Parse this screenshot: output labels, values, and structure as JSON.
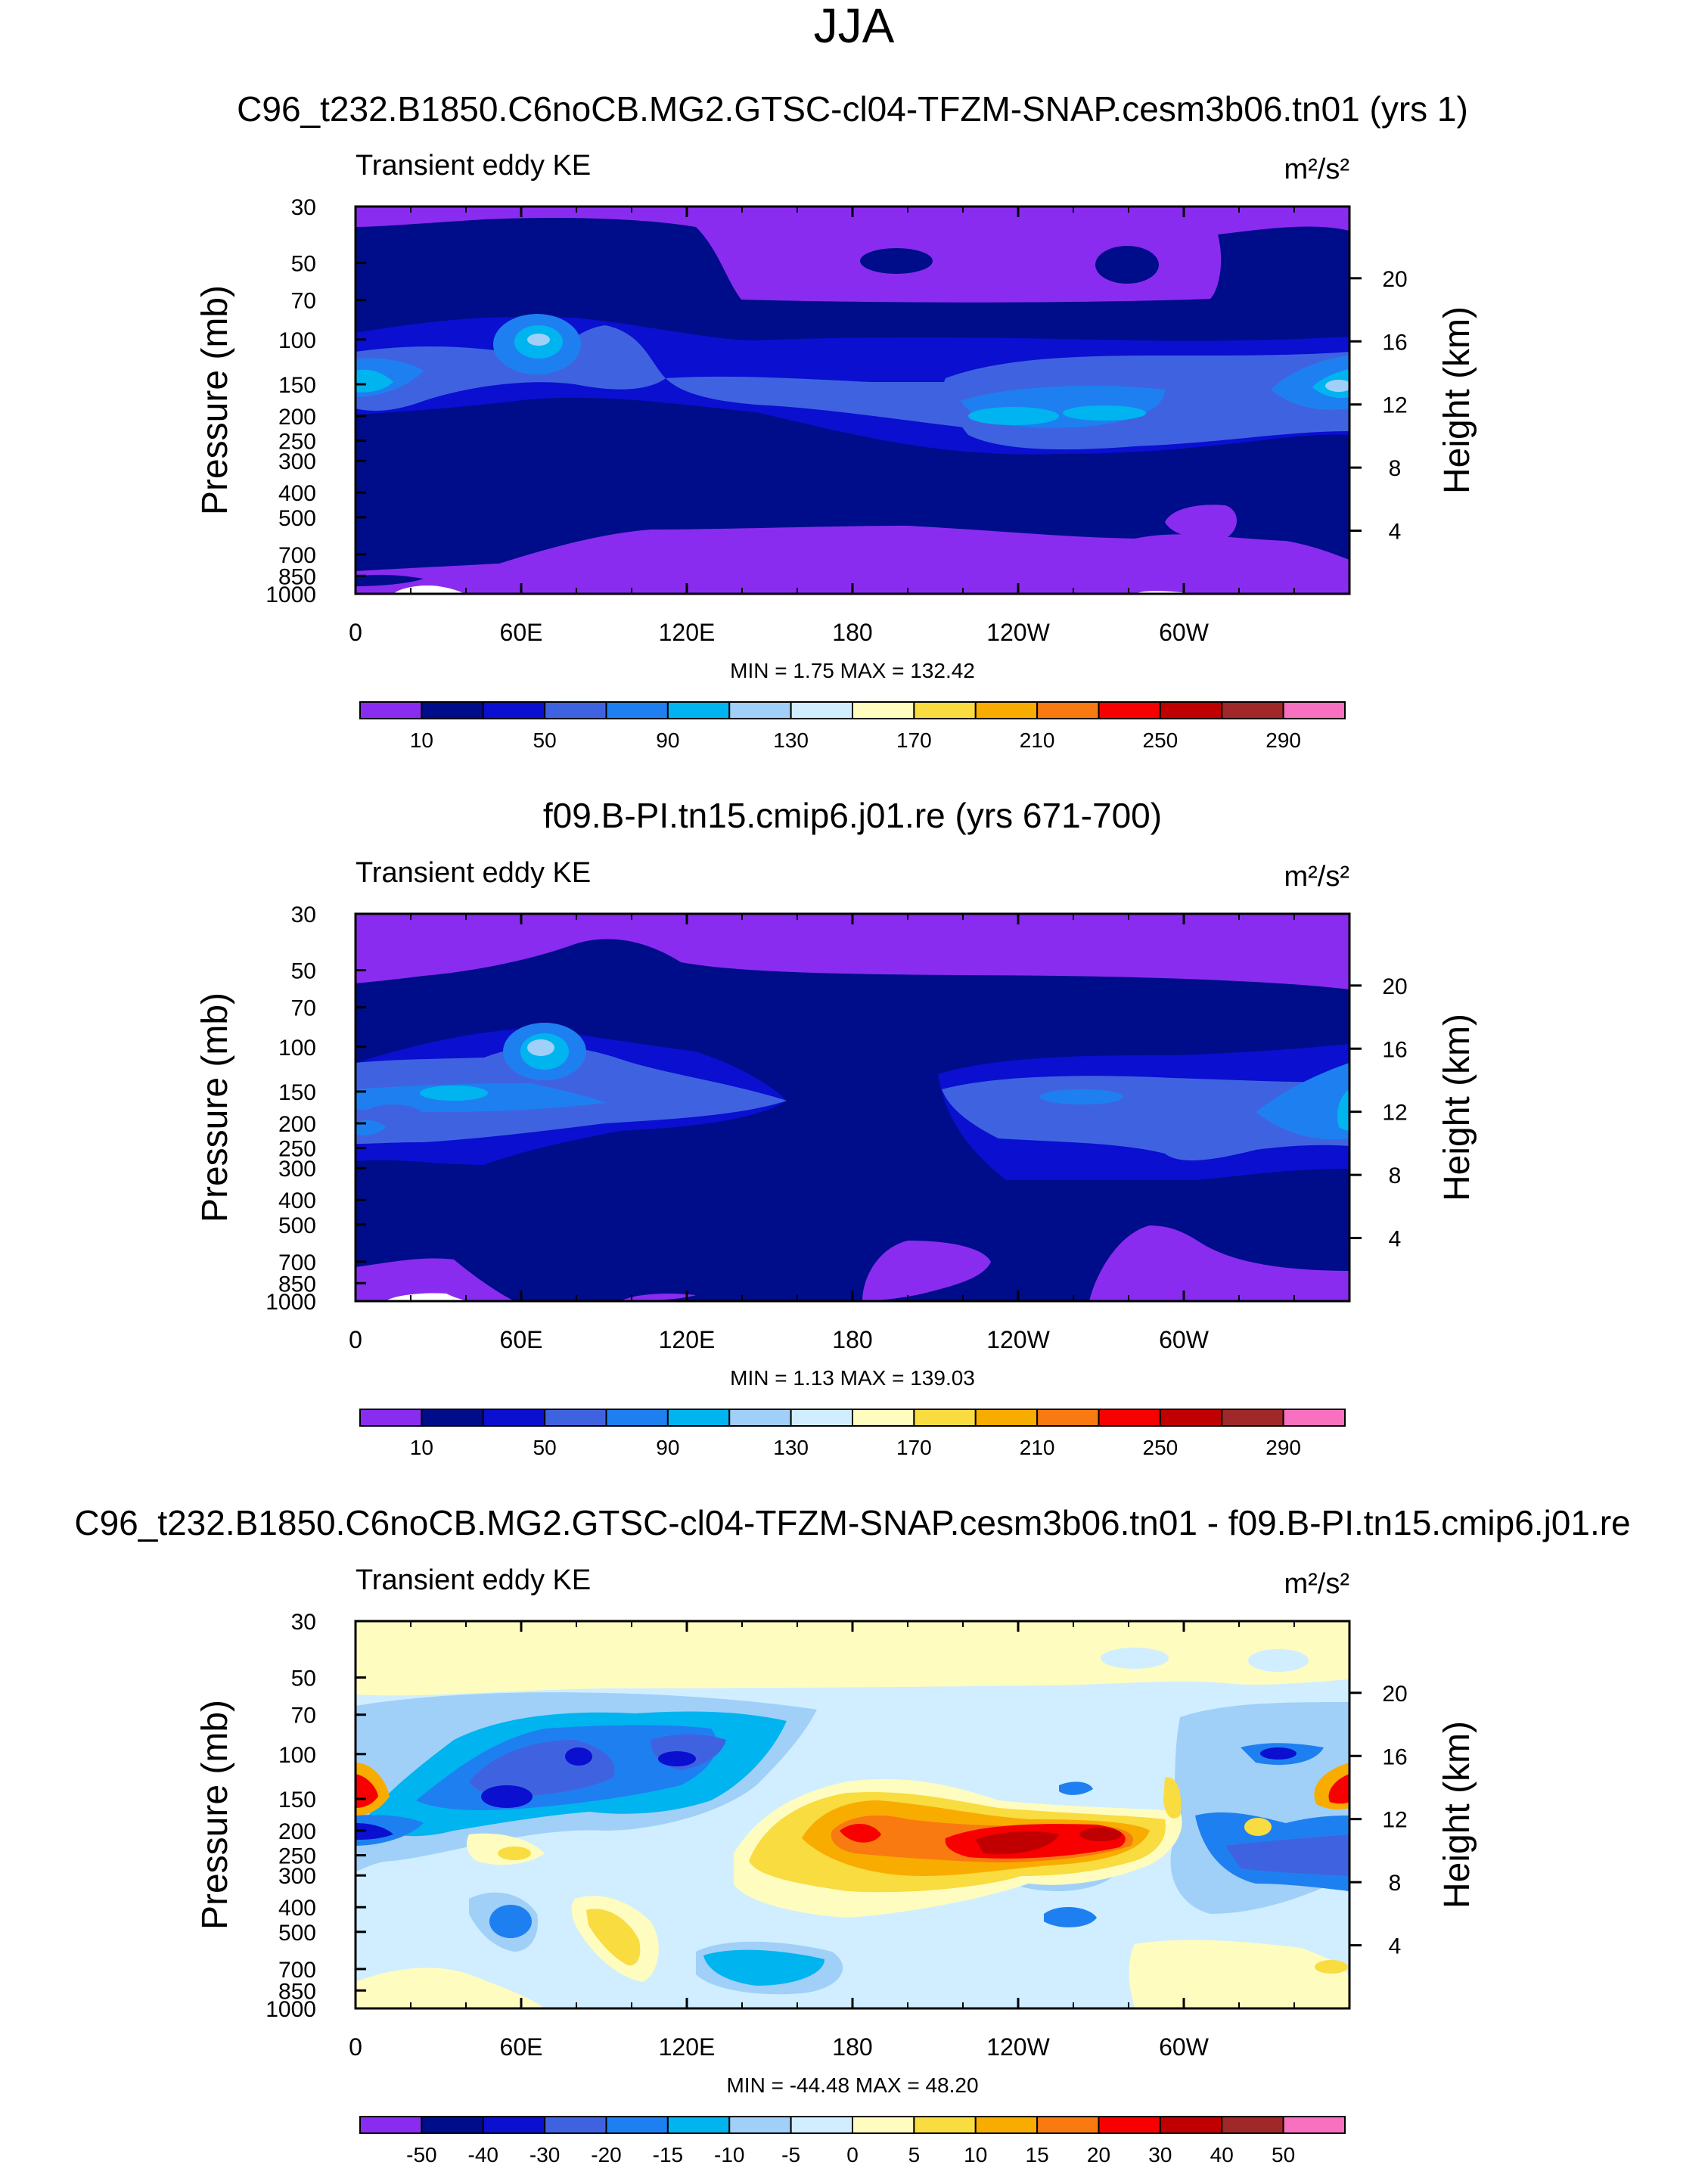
{
  "figure": {
    "title": "JJA",
    "ylabel_left": "Pressure (mb)",
    "ylabel_right": "Height (km)",
    "units": "m²/s²",
    "variable": "Transient eddy KE"
  },
  "chart_data": [
    {
      "type": "heatmap",
      "title": "C96_t232.B1850.C6noCB.MG2.GTSC-cl04-TFZM-SNAP.cesm3b06.tn01 (yrs 1)",
      "subtitle": "Transient eddy KE",
      "units": "m²/s²",
      "x_ticks": [
        "0",
        "60E",
        "120E",
        "180",
        "120W",
        "60W"
      ],
      "x_tick_lons": [
        0,
        60,
        120,
        180,
        240,
        300
      ],
      "xlim": [
        0,
        360
      ],
      "y_ticks": [
        "30",
        "50",
        "70",
        "100",
        "150",
        "200",
        "250",
        "300",
        "400",
        "500",
        "700",
        "850",
        "1000"
      ],
      "y_tick_p": [
        30,
        50,
        70,
        100,
        150,
        200,
        250,
        300,
        400,
        500,
        700,
        850,
        1000
      ],
      "ylim": [
        1000,
        30
      ],
      "yscale": "log",
      "height_ticks": [
        "20",
        "16",
        "12",
        "8",
        "4"
      ],
      "height_tick_km": [
        20,
        16,
        12,
        8,
        4
      ],
      "min_label": "MIN =   1.75  MAX = 132.42",
      "min": 1.75,
      "max": 132.42,
      "colorbar_labels": [
        "10",
        "50",
        "90",
        "130",
        "170",
        "210",
        "250",
        "290"
      ]
    },
    {
      "type": "heatmap",
      "title": "f09.B-PI.tn15.cmip6.j01.re (yrs 671-700)",
      "subtitle": "Transient eddy KE",
      "units": "m²/s²",
      "x_ticks": [
        "0",
        "60E",
        "120E",
        "180",
        "120W",
        "60W"
      ],
      "x_tick_lons": [
        0,
        60,
        120,
        180,
        240,
        300
      ],
      "xlim": [
        0,
        360
      ],
      "y_ticks": [
        "30",
        "50",
        "70",
        "100",
        "150",
        "200",
        "250",
        "300",
        "400",
        "500",
        "700",
        "850",
        "1000"
      ],
      "y_tick_p": [
        30,
        50,
        70,
        100,
        150,
        200,
        250,
        300,
        400,
        500,
        700,
        850,
        1000
      ],
      "ylim": [
        1000,
        30
      ],
      "yscale": "log",
      "height_ticks": [
        "20",
        "16",
        "12",
        "8",
        "4"
      ],
      "height_tick_km": [
        20,
        16,
        12,
        8,
        4
      ],
      "min_label": "MIN =   1.13  MAX = 139.03",
      "min": 1.13,
      "max": 139.03,
      "colorbar_labels": [
        "10",
        "50",
        "90",
        "130",
        "170",
        "210",
        "250",
        "290"
      ]
    },
    {
      "type": "heatmap",
      "title": "C96_t232.B1850.C6noCB.MG2.GTSC-cl04-TFZM-SNAP.cesm3b06.tn01 - f09.B-PI.tn15.cmip6.j01.re",
      "subtitle": "Transient eddy KE",
      "units": "m²/s²",
      "x_ticks": [
        "0",
        "60E",
        "120E",
        "180",
        "120W",
        "60W"
      ],
      "x_tick_lons": [
        0,
        60,
        120,
        180,
        240,
        300
      ],
      "xlim": [
        0,
        360
      ],
      "y_ticks": [
        "30",
        "50",
        "70",
        "100",
        "150",
        "200",
        "250",
        "300",
        "400",
        "500",
        "700",
        "850",
        "1000"
      ],
      "y_tick_p": [
        30,
        50,
        70,
        100,
        150,
        200,
        250,
        300,
        400,
        500,
        700,
        850,
        1000
      ],
      "ylim": [
        1000,
        30
      ],
      "yscale": "log",
      "height_ticks": [
        "20",
        "16",
        "12",
        "8",
        "4"
      ],
      "height_tick_km": [
        20,
        16,
        12,
        8,
        4
      ],
      "min_label": "MIN = -44.48  MAX = 48.20",
      "min": -44.48,
      "max": 48.2,
      "colorbar_labels": [
        "-50",
        "-40",
        "-30",
        "-20",
        "-15",
        "-10",
        "-5",
        "0",
        "5",
        "10",
        "15",
        "20",
        "30",
        "40",
        "50"
      ]
    }
  ],
  "colors": {
    "abs_scale": [
      "#8a2cf0",
      "#000d8a",
      "#0a0fd0",
      "#3f63e0",
      "#1e80f0",
      "#00b4f0",
      "#a0d0f8",
      "#d0eeff",
      "#fffcc0",
      "#f8dc40",
      "#f8ac00",
      "#f87a10",
      "#f80000",
      "#c00000",
      "#a02828",
      "#f870c0"
    ],
    "diff_scale": [
      "#8a2cf0",
      "#000d8a",
      "#0a0fd0",
      "#3f63e0",
      "#1e80f0",
      "#00b4f0",
      "#a0d0f8",
      "#d0eeff",
      "#fffcc0",
      "#f8dc40",
      "#f8ac00",
      "#f87a10",
      "#f80000",
      "#c00000",
      "#a02828",
      "#f870c0"
    ]
  }
}
